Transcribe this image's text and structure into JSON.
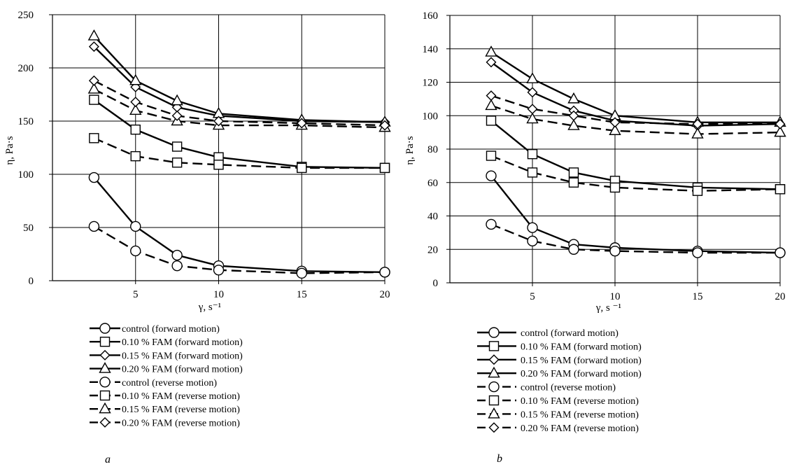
{
  "chart_data": [
    {
      "type": "line",
      "panel_label": "a",
      "xlabel": "γ, s⁻¹",
      "ylabel": "η, Pa·s",
      "x_ticks": [
        5,
        10,
        15,
        20
      ],
      "y_ticks": [
        0,
        50,
        100,
        150,
        200,
        250
      ],
      "xlim": [
        0,
        20
      ],
      "ylim": [
        0,
        250
      ],
      "grid": true,
      "legend_position": "bottom",
      "x": [
        2.5,
        5,
        7.5,
        10,
        15,
        20
      ],
      "series": [
        {
          "name": "control (forward motion)",
          "marker": "circle",
          "dash": "solid",
          "values": [
            97,
            51,
            24,
            14,
            9,
            8
          ]
        },
        {
          "name": "0.10 % FAM (forward motion)",
          "marker": "square",
          "dash": "solid",
          "values": [
            170,
            142,
            126,
            116,
            107,
            106
          ]
        },
        {
          "name": "0.15 % FAM (forward motion)",
          "marker": "diamond",
          "dash": "solid",
          "values": [
            220,
            182,
            163,
            155,
            150,
            149
          ]
        },
        {
          "name": "0.20 % FAM (forward motion)",
          "marker": "triangle",
          "dash": "solid",
          "values": [
            230,
            188,
            169,
            157,
            151,
            149
          ]
        },
        {
          "name": "control (reverse motion)",
          "marker": "circle",
          "dash": "dashed",
          "values": [
            51,
            28,
            14,
            10,
            7,
            8
          ]
        },
        {
          "name": "0.10 % FAM (reverse motion)",
          "marker": "square",
          "dash": "dashed",
          "values": [
            134,
            117,
            111,
            109,
            106,
            106
          ]
        },
        {
          "name": "0.15 % FAM (reverse motion)",
          "marker": "triangle",
          "dash": "dashed",
          "values": [
            180,
            160,
            150,
            146,
            146,
            144
          ]
        },
        {
          "name": "0.20 % FAM (reverse motion)",
          "marker": "diamond",
          "dash": "dashed",
          "values": [
            188,
            168,
            155,
            150,
            148,
            146
          ]
        }
      ]
    },
    {
      "type": "line",
      "panel_label": "b",
      "xlabel": "γ, s ⁻¹",
      "ylabel": "η, Pa·s",
      "x_ticks": [
        5,
        10,
        15,
        20
      ],
      "y_ticks": [
        0,
        20,
        40,
        60,
        80,
        100,
        120,
        140,
        160
      ],
      "xlim": [
        0,
        20
      ],
      "ylim": [
        0,
        160
      ],
      "grid": true,
      "legend_position": "bottom",
      "x": [
        2.5,
        5,
        7.5,
        10,
        15,
        20
      ],
      "series": [
        {
          "name": "control (forward motion)",
          "marker": "circle",
          "dash": "solid",
          "values": [
            64,
            33,
            23,
            21,
            19,
            18
          ]
        },
        {
          "name": "0.10 % FAM (forward motion)",
          "marker": "square",
          "dash": "solid",
          "values": [
            97,
            77,
            66,
            61,
            57,
            56
          ]
        },
        {
          "name": "0.15 % FAM (forward motion)",
          "marker": "diamond",
          "dash": "solid",
          "values": [
            132,
            114,
            103,
            97,
            94,
            95
          ]
        },
        {
          "name": "0.20 % FAM (forward motion)",
          "marker": "triangle",
          "dash": "solid",
          "values": [
            138,
            122,
            110,
            100,
            96,
            96
          ]
        },
        {
          "name": "control (reverse motion)",
          "marker": "circle",
          "dash": "dashed",
          "values": [
            35,
            25,
            20,
            19,
            18,
            18
          ]
        },
        {
          "name": "0.10 % FAM (reverse motion)",
          "marker": "square",
          "dash": "dashed",
          "values": [
            76,
            66,
            60,
            57,
            55,
            56
          ]
        },
        {
          "name": "0.15 % FAM (reverse motion)",
          "marker": "triangle",
          "dash": "dashed",
          "values": [
            106,
            98,
            94,
            91,
            89,
            90
          ]
        },
        {
          "name": "0.20 % FAM (reverse motion)",
          "marker": "diamond",
          "dash": "dashed",
          "values": [
            112,
            104,
            100,
            96,
            95,
            95
          ]
        }
      ]
    }
  ]
}
